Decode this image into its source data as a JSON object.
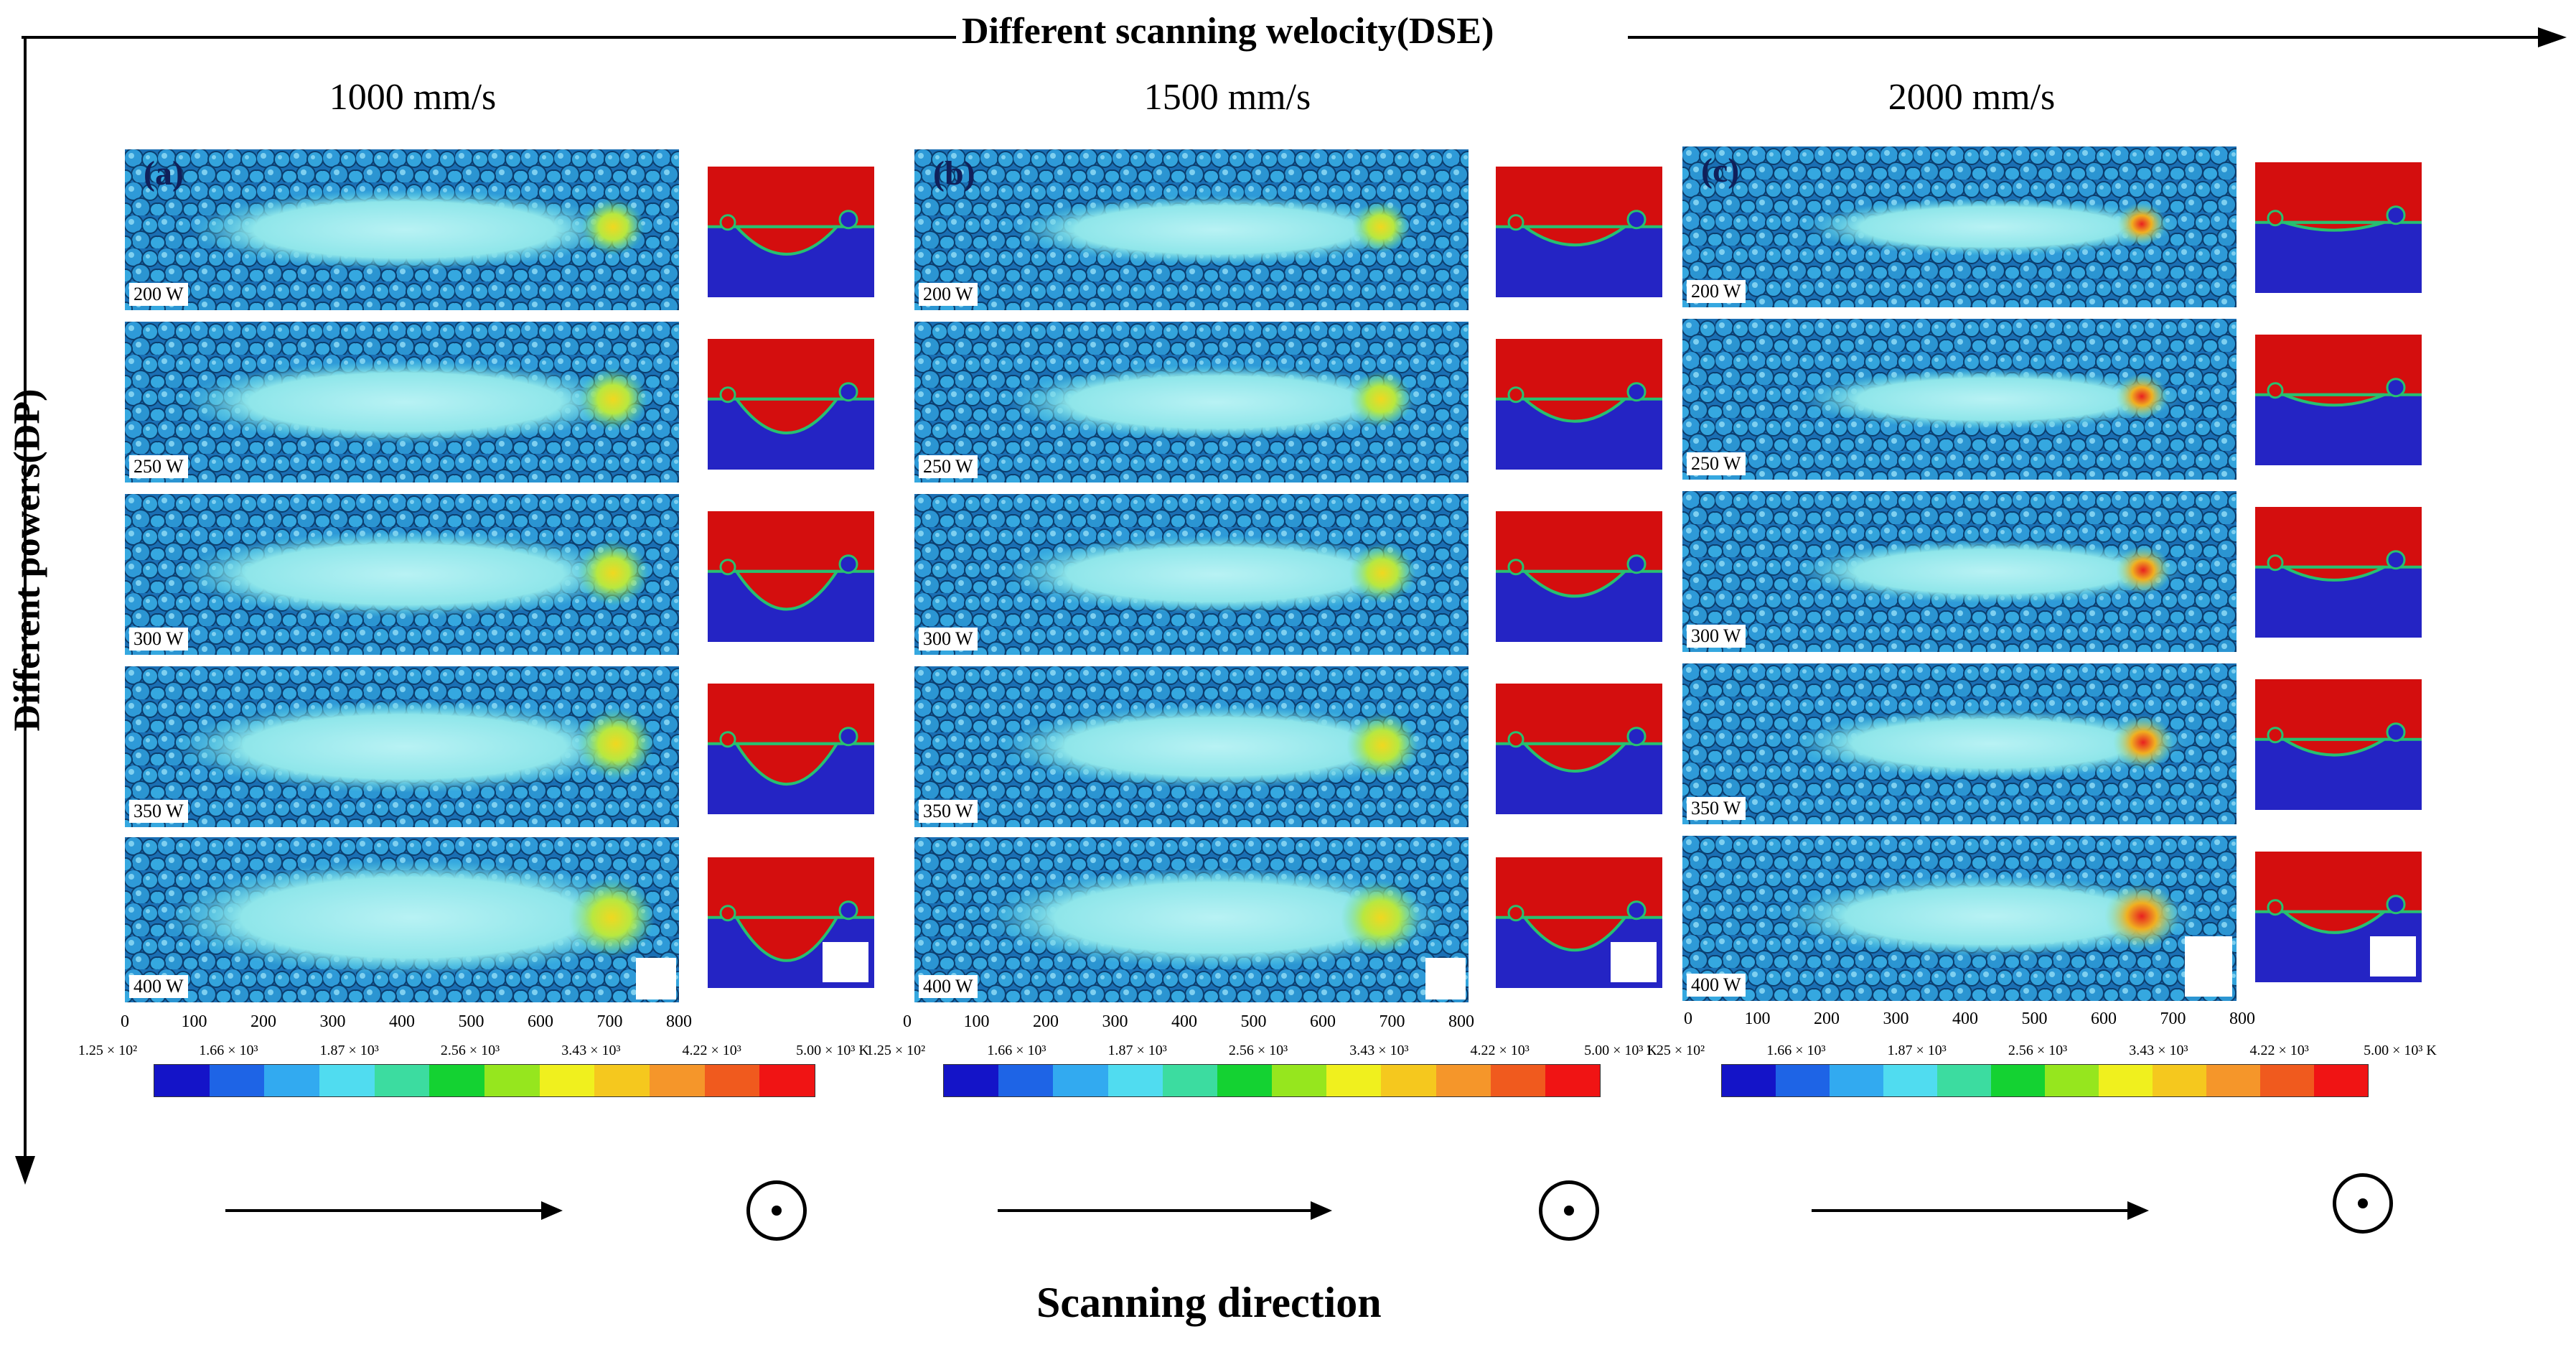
{
  "header": {
    "top_axis": "Different scanning welocity(DSE)",
    "left_axis": "Different powers(DP)",
    "bottom_title": "Scanning direction"
  },
  "columns": [
    {
      "speed": "1000 mm/s",
      "letter": "(a)"
    },
    {
      "speed": "1500 mm/s",
      "letter": "(b)"
    },
    {
      "speed": "2000 mm/s",
      "letter": "(c)"
    }
  ],
  "powers": [
    "200 W",
    "250 W",
    "300 W",
    "350 W",
    "400 W"
  ],
  "x_ticks": [
    "0",
    "100",
    "200",
    "300",
    "400",
    "500",
    "600",
    "700",
    "800"
  ],
  "colorbar": {
    "labels": [
      "1.25 × 10²",
      "1.66 × 10³",
      "1.87 × 10³",
      "2.56 × 10³",
      "3.43 × 10³",
      "4.22 × 10³",
      "5.00 × 10³ K"
    ],
    "colors": [
      "#1414c8",
      "#1e64e6",
      "#32aaf0",
      "#50dcf0",
      "#3cdca0",
      "#14d232",
      "#96e61e",
      "#f0f01e",
      "#f5c81e",
      "#f5962a",
      "#f05a1e",
      "#f01414"
    ]
  },
  "colors": {
    "powder": "#1f84c8",
    "melt": "#8fe8ee",
    "hot_core": "#f0e030",
    "cs_top": "#d40e0e",
    "cs_bottom": "#2424c4",
    "cs_edge": "#28c070"
  }
}
